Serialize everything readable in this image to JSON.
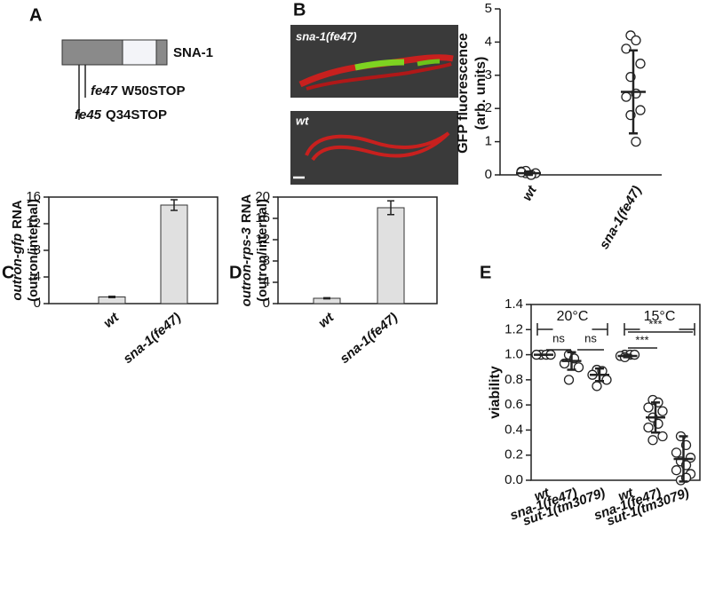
{
  "panel_labels": [
    "A",
    "B",
    "C",
    "D",
    "E"
  ],
  "diagram": {
    "protein": "SNA-1",
    "mutations": [
      {
        "allele": "fe47",
        "change": "W50STOP"
      },
      {
        "allele": "fe45",
        "change": "Q34STOP"
      }
    ]
  },
  "images": {
    "labels": [
      "sna-1(fe47)",
      "wt"
    ]
  },
  "chart_data": [
    {
      "type": "dot",
      "ylabel": [
        "GFP fluorescence",
        "(arb. units)"
      ],
      "categories": [
        "wt",
        "sna-1(fe47)"
      ],
      "values": [
        0.05,
        2.5
      ],
      "errors": [
        0.05,
        1.25
      ],
      "points": [
        [
          0.05,
          0.0,
          0.1,
          0.05,
          0.12,
          0.0,
          0.08
        ],
        [
          4.2,
          4.05,
          3.8,
          3.35,
          2.95,
          2.45,
          2.35,
          1.95,
          1.8,
          1.0
        ]
      ],
      "ylim": [
        0,
        5
      ],
      "yticks": [
        0,
        1,
        2,
        3,
        4,
        5
      ]
    },
    {
      "type": "bar",
      "ylabel": [
        "outron-gfp",
        "RNA",
        "(outron/internal)"
      ],
      "categories": [
        "wt",
        "sna-1(fe47)"
      ],
      "values": [
        1.0,
        14.8
      ],
      "errors": [
        0.1,
        0.8
      ],
      "color": "#e0e0e0",
      "ylim": [
        0,
        16
      ],
      "yticks": [
        0,
        4,
        8,
        12,
        16
      ]
    },
    {
      "type": "bar",
      "ylabel": [
        "outron-rps-3",
        "RNA",
        "(outron/internal)"
      ],
      "categories": [
        "wt",
        "sna-1(fe47)"
      ],
      "values": [
        1.0,
        18.0
      ],
      "errors": [
        0.1,
        1.3
      ],
      "color": "#e0e0e0",
      "ylim": [
        0,
        20
      ],
      "yticks": [
        0,
        4,
        8,
        12,
        16,
        20
      ]
    },
    {
      "type": "dot",
      "ylabel": [
        "viability"
      ],
      "categories": [
        "wt",
        "sna-1(fe47)",
        "sut-1(tm3079)",
        "wt",
        "sna-1(fe47)",
        "sut-1(tm3079)"
      ],
      "values": [
        1.0,
        0.95,
        0.84,
        0.99,
        0.5,
        0.17
      ],
      "errors": [
        0.0,
        0.07,
        0.05,
        0.01,
        0.12,
        0.18
      ],
      "points": [
        [
          1.0,
          1.0,
          1.0,
          1.0
        ],
        [
          1.0,
          0.97,
          0.93,
          0.9,
          0.8
        ],
        [
          0.88,
          0.87,
          0.84,
          0.8,
          0.75
        ],
        [
          1.0,
          1.0,
          0.99,
          1.0,
          0.98
        ],
        [
          0.64,
          0.62,
          0.58,
          0.55,
          0.5,
          0.45,
          0.42,
          0.35,
          0.32
        ],
        [
          0.35,
          0.28,
          0.22,
          0.18,
          0.15,
          0.12,
          0.08,
          0.05,
          0.0,
          0.02
        ]
      ],
      "groups": [
        "20°C",
        "15°C"
      ],
      "significance": [
        "ns",
        "ns",
        "***",
        "***"
      ],
      "ylim": [
        0,
        1.4
      ],
      "yticks": [
        {
          "value": 0,
          "label": "0.0"
        },
        0.2,
        0.4,
        0.6,
        0.8,
        {
          "value": 1,
          "label": "1.0"
        },
        1.2,
        1.4
      ]
    }
  ]
}
